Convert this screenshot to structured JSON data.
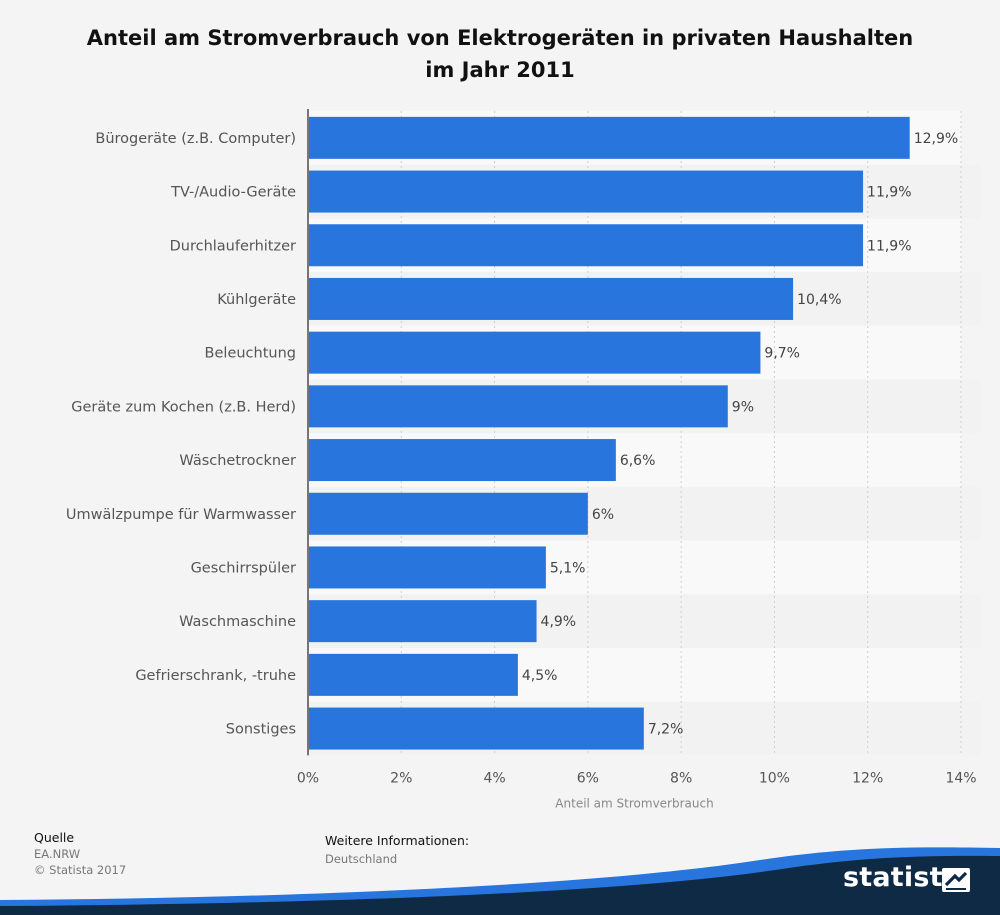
{
  "chart_data": {
    "type": "bar",
    "orientation": "horizontal",
    "title": "Anteil am Stromverbrauch von Elektrogeräten in privaten Haushalten im Jahr 2011",
    "title_lines": [
      "Anteil am Stromverbrauch von Elektrogeräten in privaten Haushalten",
      "im Jahr 2011"
    ],
    "categories": [
      "Bürogeräte (z.B. Computer)",
      "TV-/Audio-Geräte",
      "Durchlauferhitzer",
      "Kühlgeräte",
      "Beleuchtung",
      "Geräte zum Kochen (z.B. Herd)",
      "Wäschetrockner",
      "Umwälzpumpe für Warmwasser",
      "Geschirrspüler",
      "Waschmaschine",
      "Gefrierschrank, -truhe",
      "Sonstiges"
    ],
    "values": [
      12.9,
      11.9,
      11.9,
      10.4,
      9.7,
      9,
      6.6,
      6,
      5.1,
      4.9,
      4.5,
      7.2
    ],
    "value_labels": [
      "12,9%",
      "11,9%",
      "11,9%",
      "10,4%",
      "9,7%",
      "9%",
      "6,6%",
      "6%",
      "5,1%",
      "4,9%",
      "4,5%",
      "7,2%"
    ],
    "xlabel": "Anteil am Stromverbrauch",
    "ylabel": "",
    "xlim": [
      0,
      14
    ],
    "ticks": [
      "0%",
      "2%",
      "4%",
      "6%",
      "8%",
      "10%",
      "12%",
      "14%"
    ],
    "grid": true,
    "bar_color": "#2875de"
  },
  "footer": {
    "source_label": "Quelle",
    "source_value": "EA.NRW",
    "copyright": "© Statista 2017",
    "info_label": "Weitere Informationen:",
    "info_value": "Deutschland"
  },
  "brand": {
    "name": "statista",
    "swoosh_color": "#2875de",
    "dark_color": "#0f2a44"
  }
}
